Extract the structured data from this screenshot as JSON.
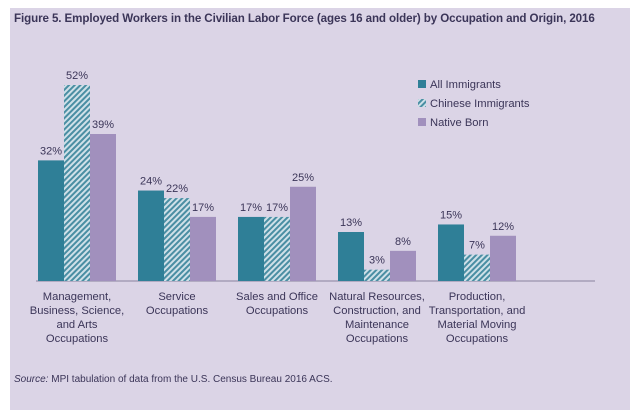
{
  "title": "Figure 5. Employed Workers in the Civilian Labor Force (ages 16 and older) by Occupation and Origin, 2016",
  "source": {
    "label": "Source:",
    "text": "MPI tabulation of data from the U.S. Census Bureau 2016 ACS."
  },
  "colors": {
    "background": "#dbd4e6",
    "all_immigrants": "#2f7f97",
    "chinese_immigrants": "#4a8ea3",
    "native_born": "#a190bd",
    "text": "#3b3558"
  },
  "chart_data": {
    "type": "bar",
    "title": "Figure 5. Employed Workers in the Civilian Labor Force (ages 16 and older) by Occupation and Origin, 2016",
    "categories": [
      [
        "Management,",
        "Business, Science,",
        "and Arts",
        "Occupations"
      ],
      [
        "Service",
        "Occupations"
      ],
      [
        "Sales and Office",
        "Occupations"
      ],
      [
        "Natural Resources,",
        "Construction, and",
        "Maintenance",
        "Occupations"
      ],
      [
        "Production,",
        "Transportation, and",
        "Material Moving",
        "Occupations"
      ]
    ],
    "series": [
      {
        "name": "All Immigrants",
        "values": [
          32,
          24,
          17,
          13,
          15
        ],
        "labels": [
          "32%",
          "24%",
          "17%",
          "13%",
          "15%"
        ],
        "pattern": "solid"
      },
      {
        "name": "Chinese Immigrants",
        "values": [
          52,
          22,
          17,
          3,
          7
        ],
        "labels": [
          "52%",
          "22%",
          "17%",
          "3%",
          "7%"
        ],
        "pattern": "hatched"
      },
      {
        "name": "Native Born",
        "values": [
          39,
          17,
          25,
          8,
          12
        ],
        "labels": [
          "39%",
          "17%",
          "25%",
          "8%",
          "12%"
        ],
        "pattern": "solid"
      }
    ],
    "ylim": [
      0,
      52
    ],
    "grid": false,
    "legend_position": "top-right",
    "xlabel": "",
    "ylabel": ""
  }
}
